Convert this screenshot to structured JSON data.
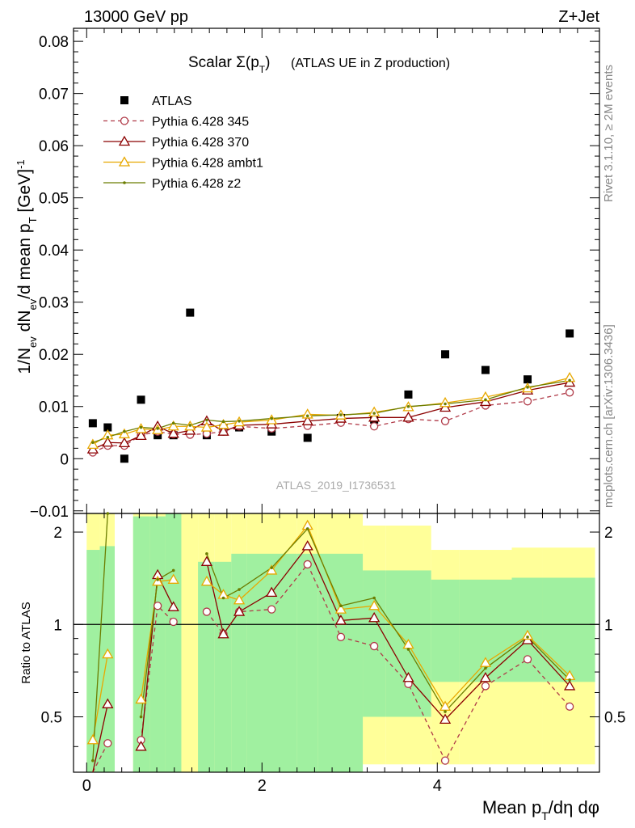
{
  "header": {
    "energy_label": "13000 GeV pp",
    "process_label": "Z+Jet"
  },
  "side_notes": {
    "rivet": "Rivet 3.1.10, ≥ 2M events",
    "source": "mcplots.cern.ch [arXiv:1306.3436]"
  },
  "analysis_tag": "ATLAS_2019_I1736531",
  "chart_data": [
    {
      "type": "scatter",
      "panel": "main",
      "title": "Scalar Σ(p_T) (ATLAS UE in Z production)",
      "ylabel": "1/N_ev dN_ev/d mean p_T [GeV]^-1",
      "xlabel": "Mean p_T/dη dφ",
      "xlim": [
        -0.15,
        5.85
      ],
      "ylim": [
        -0.0105,
        0.0825
      ],
      "yticks": [
        "−0.01",
        "0",
        "0.01",
        "0.02",
        "0.03",
        "0.04",
        "0.05",
        "0.06",
        "0.07",
        "0.08"
      ],
      "xticks": [
        "0",
        "2",
        "4"
      ],
      "legend_position": "top-left",
      "x": [
        0.07,
        0.24,
        0.43,
        0.62,
        0.81,
        0.99,
        1.18,
        1.37,
        1.56,
        1.74,
        2.11,
        2.52,
        2.9,
        3.28,
        3.67,
        4.09,
        4.55,
        5.03,
        5.51
      ],
      "series": [
        {
          "name": "ATLAS",
          "color": "#000000",
          "marker": "square",
          "line": "none",
          "values": [
            0.0068,
            0.006,
            0.0,
            0.0113,
            0.0045,
            0.0045,
            0.028,
            0.0045,
            0.0058,
            0.006,
            0.0052,
            0.004,
            0.0078,
            0.0075,
            0.0123,
            0.02,
            0.017,
            0.0152,
            0.024
          ]
        },
        {
          "name": "Pythia 6.428 345",
          "color": "#b03a48",
          "marker": "open-circle",
          "line": "dashed",
          "values": [
            0.0012,
            0.0025,
            0.0025,
            0.0045,
            0.0052,
            0.0047,
            0.0046,
            0.0048,
            0.0052,
            0.0062,
            0.0058,
            0.0063,
            0.0069,
            0.0062,
            0.0076,
            0.0072,
            0.0102,
            0.011,
            0.0127
          ]
        },
        {
          "name": "Pythia 6.428 370",
          "color": "#8b0000",
          "marker": "open-triangle",
          "line": "solid",
          "values": [
            0.0018,
            0.0031,
            0.003,
            0.0044,
            0.0062,
            0.0048,
            0.0054,
            0.0072,
            0.0052,
            0.0064,
            0.0066,
            0.0072,
            0.0077,
            0.0079,
            0.0079,
            0.0098,
            0.0109,
            0.0131,
            0.0146
          ]
        },
        {
          "name": "Pythia 6.428 ambt1",
          "color": "#e8a800",
          "marker": "open-triangle",
          "line": "solid",
          "values": [
            0.0027,
            0.0045,
            0.0047,
            0.0057,
            0.0055,
            0.0062,
            0.0062,
            0.006,
            0.0065,
            0.007,
            0.0074,
            0.0085,
            0.0083,
            0.0089,
            0.0099,
            0.0107,
            0.0118,
            0.0135,
            0.0155
          ]
        },
        {
          "name": "Pythia 6.428 z2",
          "color": "#6b7d00",
          "marker": "dot",
          "line": "solid",
          "values": [
            0.0031,
            0.0041,
            0.0052,
            0.006,
            0.0058,
            0.0068,
            0.0064,
            0.0074,
            0.0071,
            0.0072,
            0.0077,
            0.0082,
            0.0084,
            0.0087,
            0.01,
            0.0105,
            0.0113,
            0.0137,
            0.015
          ]
        }
      ]
    },
    {
      "type": "line",
      "panel": "ratio",
      "ylabel": "Ratio to ATLAS",
      "xlabel": "Mean p_T/dη dφ",
      "ylim": [
        0.33,
        2.3
      ],
      "yticks": [
        "0.5",
        "1",
        "2"
      ],
      "reference_line": 1,
      "bands": {
        "edges": [
          0,
          0.15,
          0.32,
          0.53,
          0.72,
          0.9,
          1.08,
          1.27,
          1.46,
          1.65,
          1.83,
          2.4,
          2.64,
          3.15,
          3.41,
          3.93,
          4.25,
          4.85,
          5.2,
          5.8
        ],
        "stat": {
          "name": "stat. uncertainty",
          "color": "#a0f0a0",
          "low": [
            0.1,
            0.1,
            null,
            0.1,
            0.1,
            0.1,
            null,
            0.1,
            0.1,
            0.1,
            0.1,
            0.1,
            0.1,
            0.5,
            0.5,
            0.65,
            0.65,
            0.65,
            0.65
          ],
          "high": [
            1.75,
            1.8,
            null,
            2.25,
            2.25,
            2.3,
            null,
            1.6,
            1.6,
            1.7,
            1.7,
            1.7,
            1.7,
            1.5,
            1.5,
            1.4,
            1.4,
            1.42,
            1.42
          ]
        },
        "total": {
          "name": "total uncertainty",
          "color": "#ffff99",
          "low": [
            0.1,
            0.1,
            null,
            0.1,
            0.1,
            0.1,
            0.1,
            0.1,
            0.1,
            0.1,
            0.1,
            0.1,
            0.1,
            0.35,
            0.35,
            0.35,
            0.35,
            0.35,
            0.35
          ],
          "high": [
            2.3,
            2.3,
            null,
            2.3,
            2.3,
            2.3,
            2.3,
            2.3,
            2.3,
            2.3,
            2.3,
            2.3,
            2.3,
            2.1,
            2.1,
            1.75,
            1.75,
            1.78,
            1.78
          ]
        }
      },
      "x": [
        0.07,
        0.24,
        0.43,
        0.62,
        0.81,
        0.99,
        1.18,
        1.37,
        1.56,
        1.74,
        2.11,
        2.52,
        2.9,
        3.28,
        3.67,
        4.09,
        4.55,
        5.03,
        5.51
      ],
      "series": [
        {
          "name": "Pythia 6.428 345",
          "color": "#b03a48",
          "marker": "open-circle",
          "line": "dashed",
          "values": [
            0.2,
            0.41,
            null,
            0.42,
            1.15,
            1.02,
            null,
            1.1,
            0.93,
            1.1,
            1.12,
            1.57,
            0.91,
            0.85,
            0.64,
            0.36,
            0.63,
            0.77,
            0.54
          ]
        },
        {
          "name": "Pythia 6.428 370",
          "color": "#8b0000",
          "marker": "open-triangle",
          "line": "solid",
          "values": [
            0.27,
            0.55,
            null,
            0.4,
            1.45,
            1.14,
            null,
            1.6,
            0.93,
            1.1,
            1.27,
            1.8,
            1.03,
            1.05,
            0.67,
            0.49,
            0.67,
            0.89,
            0.63
          ]
        },
        {
          "name": "Pythia 6.428 ambt1",
          "color": "#e8a800",
          "marker": "open-triangle",
          "line": "solid",
          "values": [
            0.42,
            0.8,
            null,
            0.57,
            1.38,
            1.4,
            null,
            1.38,
            1.25,
            1.2,
            1.5,
            2.1,
            1.12,
            1.15,
            0.86,
            0.54,
            0.75,
            0.92,
            0.68
          ]
        },
        {
          "name": "Pythia 6.428 z2",
          "color": "#6b7d00",
          "marker": "dot",
          "line": "solid",
          "values": [
            0.36,
            2.3,
            null,
            0.5,
            1.4,
            1.5,
            null,
            1.7,
            1.22,
            1.3,
            1.53,
            2.05,
            1.15,
            1.22,
            0.83,
            0.52,
            0.72,
            0.91,
            0.66
          ]
        }
      ]
    }
  ]
}
